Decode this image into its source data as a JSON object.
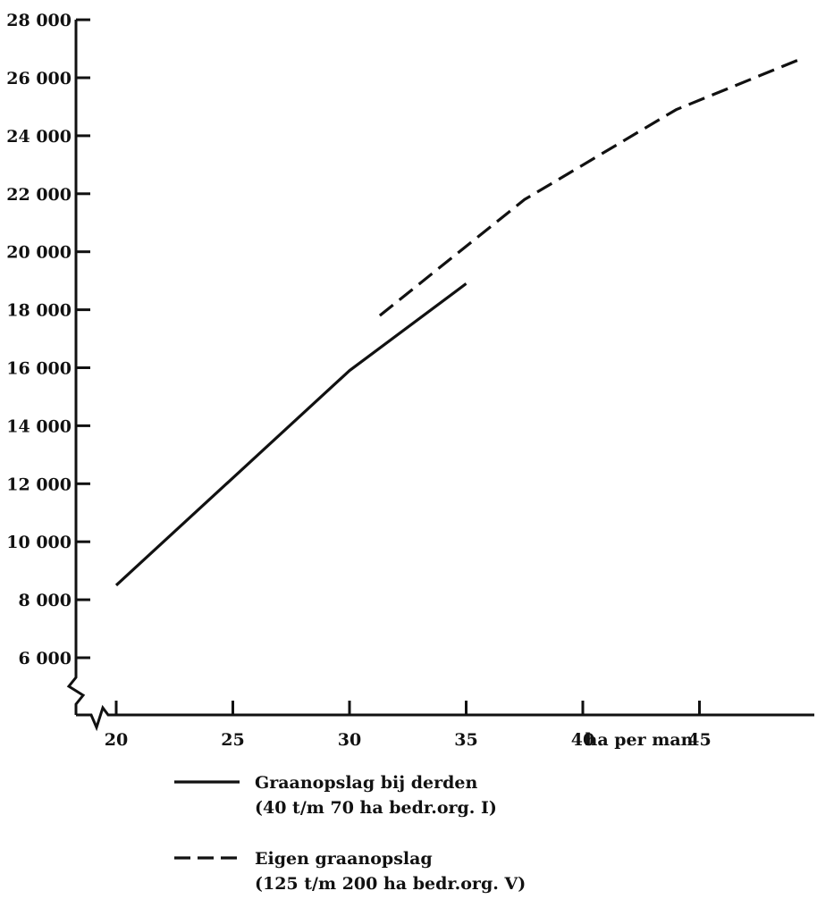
{
  "chart_data": {
    "type": "line",
    "title": "",
    "xlabel": "ha per man",
    "ylabel": "",
    "xlim": [
      18.2,
      49.5
    ],
    "ylim": [
      6000,
      28000
    ],
    "x_ticks": [
      20,
      25,
      30,
      35,
      40,
      45
    ],
    "x_tick_labels": [
      "20",
      "25",
      "30",
      "35",
      "40",
      "45"
    ],
    "y_ticks": [
      6000,
      8000,
      10000,
      12000,
      14000,
      16000,
      18000,
      20000,
      22000,
      24000,
      26000,
      28000
    ],
    "y_tick_labels": [
      "6 000",
      "8 000",
      "10 000",
      "12 000",
      "14 000",
      "16 000",
      "18 000",
      "20 000",
      "22 000",
      "24 000",
      "26 000",
      "28 000"
    ],
    "axis_break": "y-axis below 6 000 and x-axis below 20",
    "grid": false,
    "legend_position": "bottom",
    "series": [
      {
        "name": "Graanopslag bij derden",
        "name_line2": "(40 t/m 70 ha bedr.org. I)",
        "style": "solid",
        "x": [
          20,
          30,
          35
        ],
        "y": [
          8500,
          15900,
          18900
        ]
      },
      {
        "name": "Eigen graanopslag",
        "name_line2": "(125 t/m 200 ha bedr.org. V)",
        "style": "dashed",
        "x": [
          31.3,
          37.5,
          44,
          49.5
        ],
        "y": [
          17800,
          21800,
          24900,
          26700
        ]
      }
    ]
  }
}
